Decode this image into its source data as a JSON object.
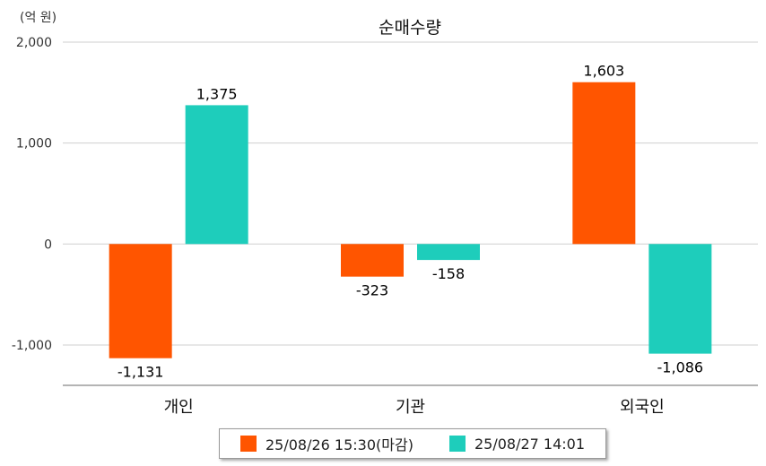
{
  "chart_data": {
    "type": "bar",
    "title": "순매수량",
    "unit_label": "(억 원)",
    "categories": [
      "개인",
      "기관",
      "외국인"
    ],
    "series": [
      {
        "name": "25/08/26 15:30(마감)",
        "color": "#ff5500",
        "values": [
          -1131,
          -323,
          1603
        ]
      },
      {
        "name": "25/08/27 14:01",
        "color": "#1ecdbb",
        "values": [
          1375,
          -158,
          -1086
        ]
      }
    ],
    "value_labels": [
      [
        "-1,131",
        "-323",
        "1,603"
      ],
      [
        "1,375",
        "-158",
        "-1,086"
      ]
    ],
    "ylim": [
      -1400,
      2000
    ],
    "yticks": [
      2000,
      1000,
      0,
      -1000
    ],
    "ytick_labels": [
      "2,000",
      "1,000",
      "0",
      "-1,000"
    ],
    "grid": true,
    "legend_position": "bottom"
  }
}
